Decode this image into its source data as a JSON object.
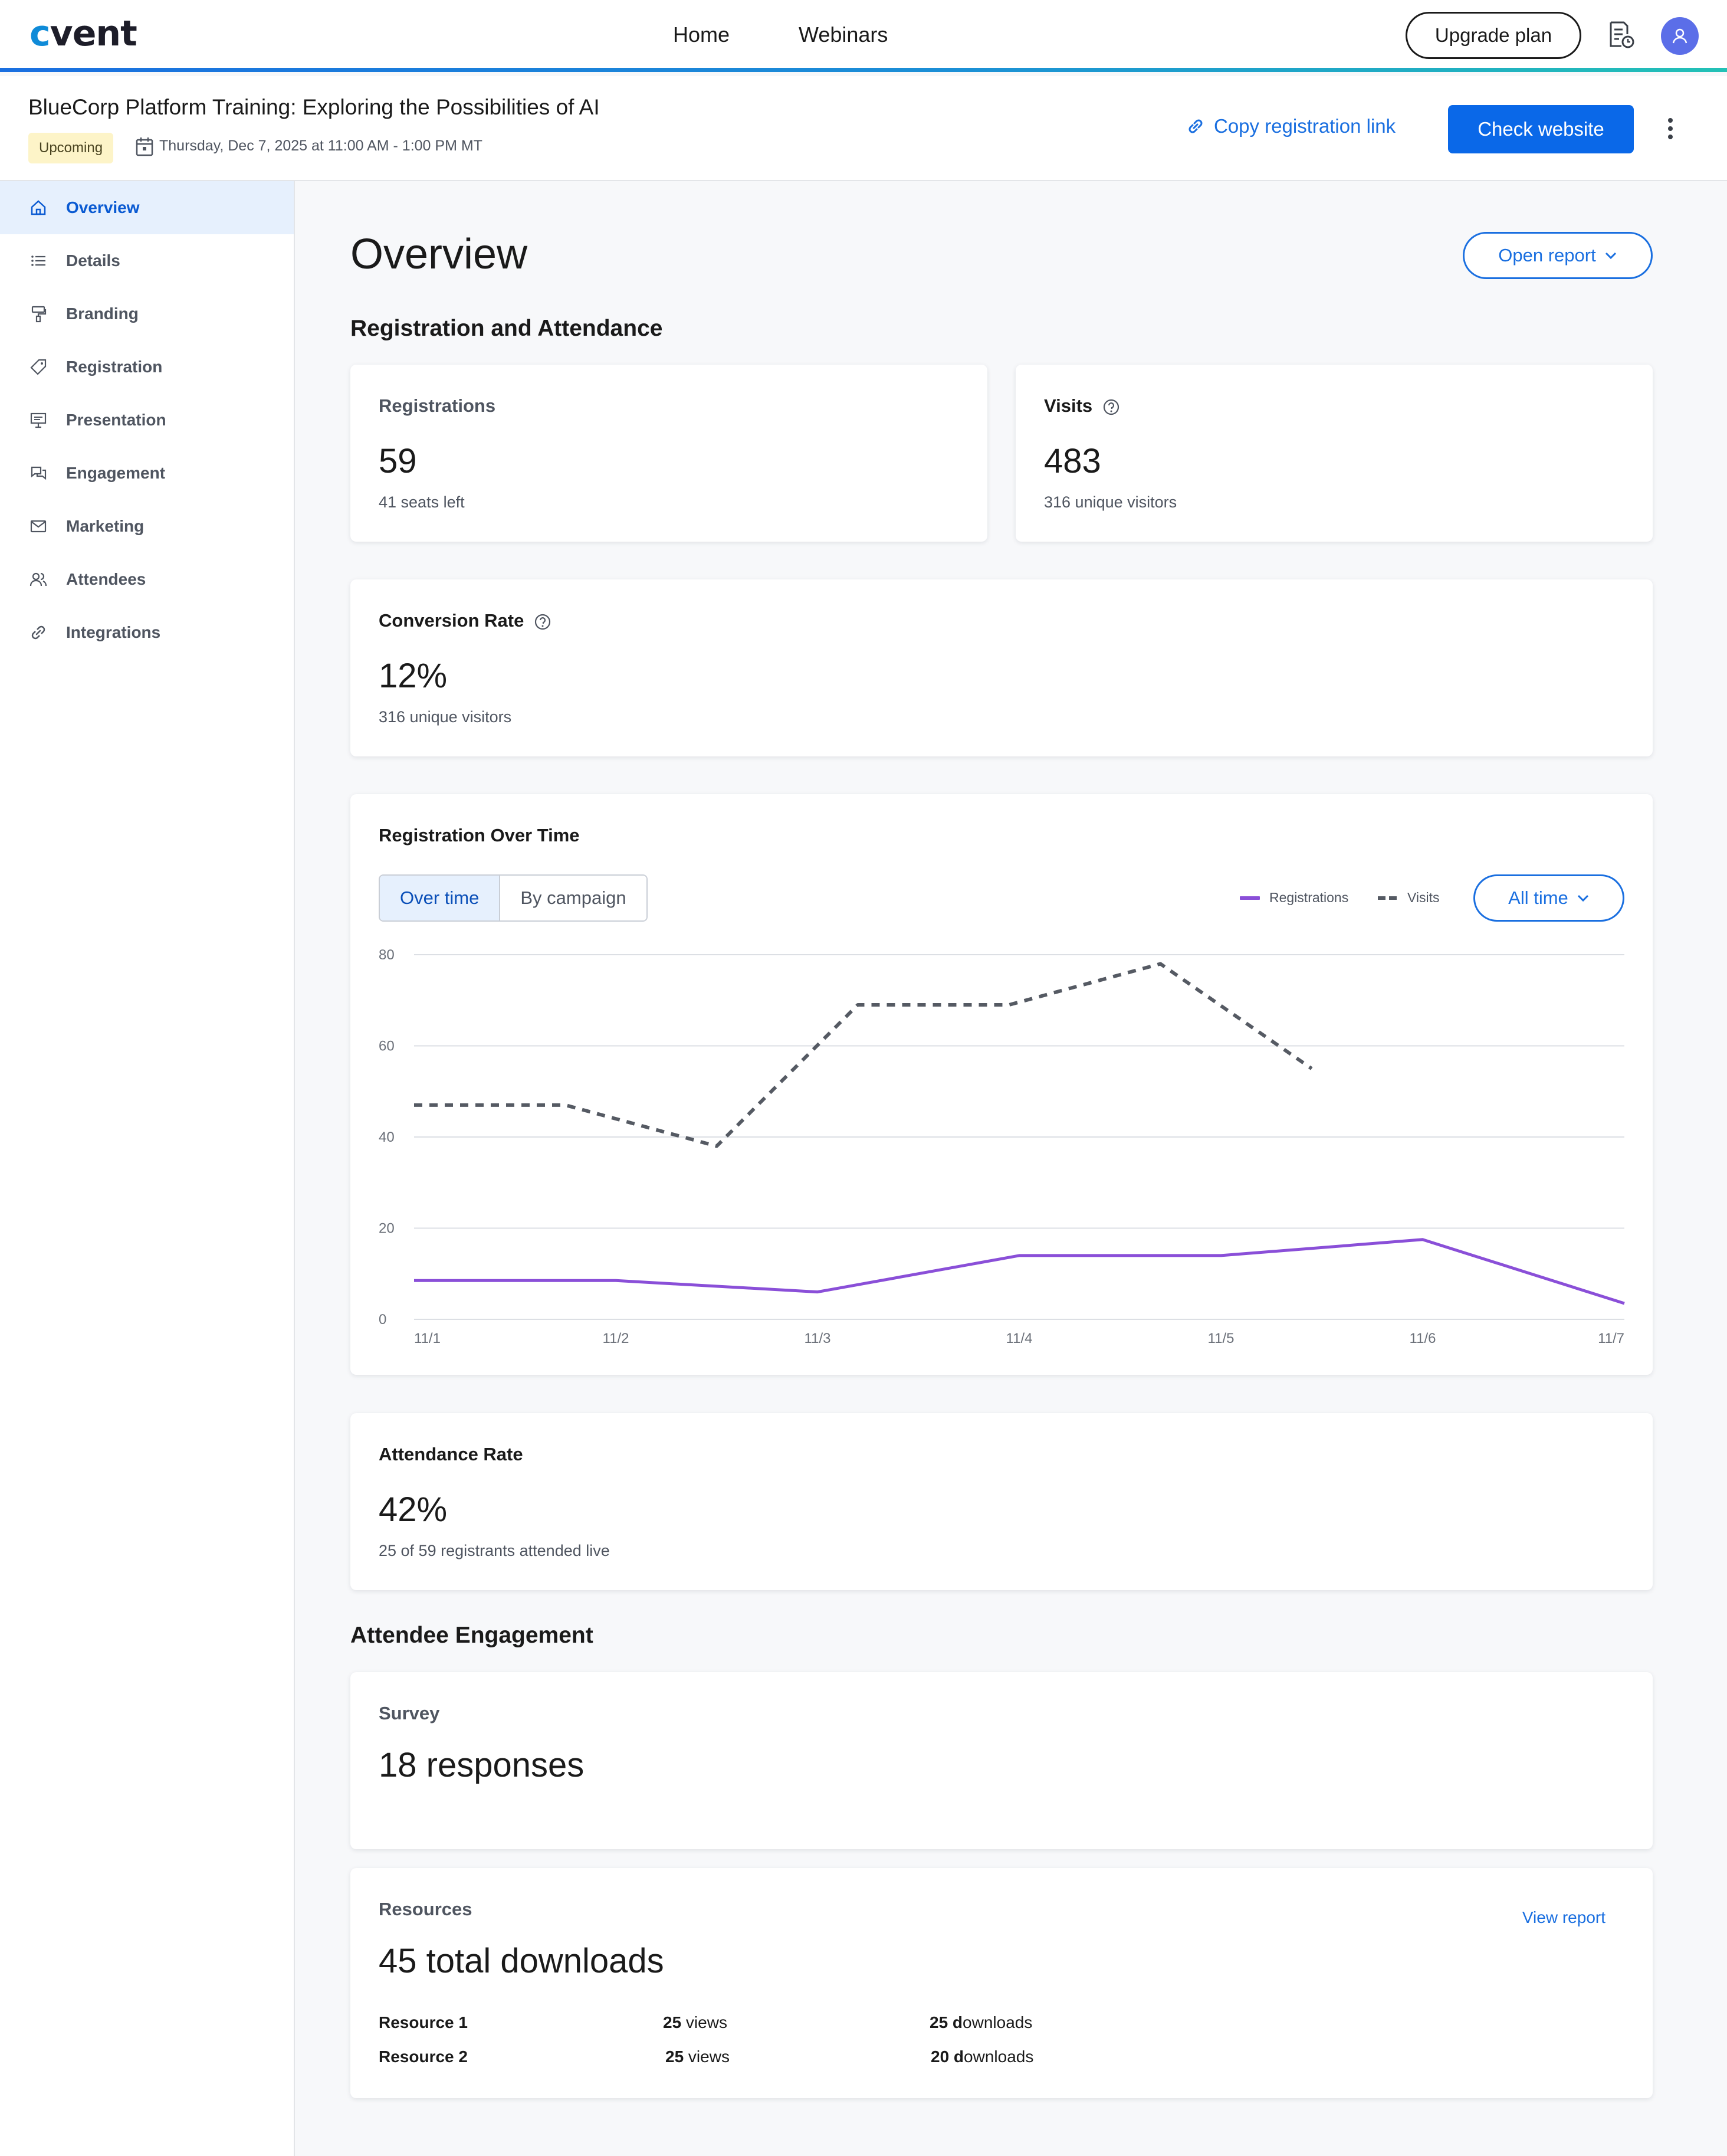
{
  "nav": {
    "logo": "cvent",
    "links": [
      "Home",
      "Webinars"
    ],
    "upgrade_label": "Upgrade plan"
  },
  "event": {
    "title": "BlueCorp Platform Training: Exploring the Possibilities of AI",
    "status": "Upcoming",
    "date": "Thursday, Dec 7, 2025 at 11:00 AM - 1:00 PM MT",
    "copy_link_label": "Copy registration link",
    "check_website_label": "Check website"
  },
  "sidebar": {
    "items": [
      {
        "label": "Overview",
        "icon": "home-icon",
        "active": true
      },
      {
        "label": "Details",
        "icon": "list-icon"
      },
      {
        "label": "Branding",
        "icon": "paint-roller-icon"
      },
      {
        "label": "Registration",
        "icon": "tag-icon"
      },
      {
        "label": "Presentation",
        "icon": "easel-icon"
      },
      {
        "label": "Engagement",
        "icon": "chat-bubbles-icon"
      },
      {
        "label": "Marketing",
        "icon": "envelope-icon"
      },
      {
        "label": "Attendees",
        "icon": "people-icon"
      },
      {
        "label": "Integrations",
        "icon": "link-icon"
      }
    ]
  },
  "main": {
    "title": "Overview",
    "open_report_label": "Open report",
    "section_registration": "Registration and Attendance",
    "section_engagement": "Attendee Engagement",
    "registrations": {
      "label": "Registrations",
      "value": "59",
      "sub": "41 seats left"
    },
    "visits": {
      "label": "Visits",
      "value": "483",
      "sub": "316 unique visitors"
    },
    "conversion": {
      "label": "Conversion Rate",
      "value": "12%",
      "sub": "316 unique visitors"
    },
    "chart_card": {
      "title": "Registration Over Time",
      "tabs": [
        "Over time",
        "By campaign"
      ],
      "range_label": "All time"
    },
    "attendance": {
      "label": "Attendance Rate",
      "value": "42%",
      "sub": "25 of 59 registrants attended live"
    },
    "survey": {
      "label": "Survey",
      "value": "18 responses"
    },
    "resources": {
      "label": "Resources",
      "value": "45 total downloads",
      "view_report_label": "View report",
      "rows": [
        {
          "name": "Resource 1",
          "views_num": "25",
          "views_unit": " views",
          "downloads_num": "25 d",
          "downloads_unit": "ownloads"
        },
        {
          "name": "Resource 2",
          "views_num": "25",
          "views_unit": " views",
          "downloads_num": "20 d",
          "downloads_unit": "ownloads"
        }
      ]
    }
  },
  "colors": {
    "accent": "#1a6fe0",
    "registrations_line": "#8a4fd8",
    "visits_line": "#555a63",
    "badge_bg": "#fdf4c8"
  },
  "chart_data": {
    "type": "line",
    "categories": [
      "11/1",
      "11/2",
      "11/3",
      "11/4",
      "11/5",
      "11/6",
      "11/7"
    ],
    "ylim": [
      0,
      80
    ],
    "yticks": [
      "80",
      "60",
      "40",
      "20",
      "0"
    ],
    "grid": true,
    "legend_position": "top-right",
    "series": [
      {
        "name": "Registrations",
        "style": "solid",
        "points": [
          [
            0,
            8.5
          ],
          [
            1,
            8.5
          ],
          [
            2,
            6
          ],
          [
            3,
            14
          ],
          [
            4,
            14
          ],
          [
            5,
            17.5
          ],
          [
            6,
            3.5
          ]
        ]
      },
      {
        "name": "Visits",
        "style": "dashed",
        "points": [
          [
            0,
            47
          ],
          [
            0.75,
            47
          ],
          [
            1.5,
            38
          ],
          [
            2.2,
            69
          ],
          [
            2.95,
            69
          ],
          [
            3.7,
            78
          ],
          [
            4.45,
            55
          ]
        ]
      }
    ]
  }
}
